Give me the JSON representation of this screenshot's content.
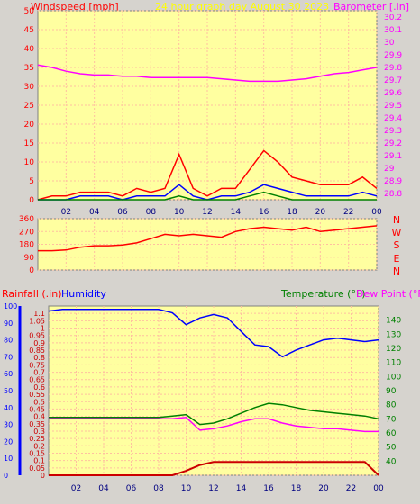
{
  "header": {
    "left": "Windspeed [mph]",
    "center": "24 hour graph day   August 30 2023",
    "right": "Barometer [.in]"
  },
  "colors": {
    "plot_bg": "#ffffa0",
    "grid": "#ffc0a0",
    "wind_gust": "#ff0000",
    "wind_avg": "#0000ff",
    "wind_low": "#008000",
    "barometer": "#ff00ff",
    "direction": "#ff0000",
    "humidity": "#0000ff",
    "temperature": "#008000",
    "dewpoint": "#ff00ff",
    "rainfall": "#cc0000"
  },
  "chart_data": [
    {
      "id": "wind_barometer",
      "type": "line",
      "x_ticks": [
        "02",
        "04",
        "06",
        "08",
        "10",
        "12",
        "14",
        "16",
        "18",
        "20",
        "22",
        "00"
      ],
      "y_left": {
        "label": "Windspeed [mph]",
        "lim": [
          0,
          50
        ],
        "ticks": [
          "0",
          "5",
          "10",
          "15",
          "20",
          "25",
          "30",
          "35",
          "40",
          "45",
          "50"
        ]
      },
      "y_right": {
        "label": "Barometer [.in]",
        "lim": [
          28.75,
          30.25
        ],
        "ticks": [
          "28.8",
          "28.9",
          "29",
          "29.1",
          "29.2",
          "29.3",
          "29.4",
          "29.5",
          "29.6",
          "29.7",
          "29.8",
          "29.9",
          "30",
          "30.1",
          "30.2"
        ]
      },
      "series": [
        {
          "name": "Barometer",
          "axis": "right",
          "x": [
            0,
            1,
            2,
            3,
            4,
            5,
            6,
            7,
            8,
            9,
            10,
            11,
            12,
            13,
            14,
            15,
            16,
            17,
            18,
            19,
            20,
            21,
            22,
            23,
            24
          ],
          "values": [
            29.82,
            29.8,
            29.77,
            29.75,
            29.74,
            29.74,
            29.73,
            29.73,
            29.72,
            29.72,
            29.72,
            29.72,
            29.72,
            29.71,
            29.7,
            29.69,
            29.69,
            29.69,
            29.7,
            29.71,
            29.73,
            29.75,
            29.76,
            29.78,
            29.8
          ]
        },
        {
          "name": "Wind gust",
          "axis": "left",
          "x": [
            0,
            1,
            2,
            3,
            4,
            5,
            6,
            7,
            8,
            9,
            10,
            11,
            12,
            13,
            14,
            15,
            16,
            17,
            18,
            19,
            20,
            21,
            22,
            23,
            24
          ],
          "values": [
            0,
            1,
            1,
            2,
            2,
            2,
            1,
            3,
            2,
            3,
            12,
            3,
            1,
            3,
            3,
            8,
            13,
            10,
            6,
            5,
            4,
            4,
            4,
            6,
            3
          ]
        },
        {
          "name": "Wind average",
          "axis": "left",
          "x": [
            0,
            1,
            2,
            3,
            4,
            5,
            6,
            7,
            8,
            9,
            10,
            11,
            12,
            13,
            14,
            15,
            16,
            17,
            18,
            19,
            20,
            21,
            22,
            23,
            24
          ],
          "values": [
            0,
            0,
            0,
            1,
            1,
            1,
            0,
            1,
            1,
            1,
            4,
            1,
            0,
            1,
            1,
            2,
            4,
            3,
            2,
            1,
            1,
            1,
            1,
            2,
            1
          ]
        },
        {
          "name": "Wind low",
          "axis": "left",
          "x": [
            0,
            1,
            2,
            3,
            4,
            5,
            6,
            7,
            8,
            9,
            10,
            11,
            12,
            13,
            14,
            15,
            16,
            17,
            18,
            19,
            20,
            21,
            22,
            23,
            24
          ],
          "values": [
            0,
            0,
            0,
            0,
            0,
            0,
            0,
            0,
            0,
            0,
            1,
            0,
            0,
            0,
            0,
            1,
            2,
            1,
            0,
            0,
            0,
            0,
            0,
            0,
            0
          ]
        }
      ]
    },
    {
      "id": "wind_direction",
      "type": "line",
      "y_ticks": [
        "0",
        "90",
        "180",
        "270",
        "360"
      ],
      "ylim": [
        0,
        360
      ],
      "compass": [
        "N",
        "W",
        "S",
        "E",
        "N"
      ],
      "series": [
        {
          "name": "Wind direction",
          "x": [
            0,
            1,
            2,
            3,
            4,
            5,
            6,
            7,
            8,
            9,
            10,
            11,
            12,
            13,
            14,
            15,
            16,
            17,
            18,
            19,
            20,
            21,
            22,
            23,
            24
          ],
          "values": [
            135,
            135,
            140,
            160,
            170,
            170,
            175,
            190,
            220,
            250,
            240,
            250,
            240,
            230,
            270,
            290,
            300,
            290,
            280,
            300,
            270,
            280,
            290,
            300,
            310
          ]
        }
      ]
    },
    {
      "id": "temp_humidity_rain",
      "type": "line",
      "x_ticks": [
        "02",
        "04",
        "06",
        "08",
        "10",
        "12",
        "14",
        "16",
        "18",
        "20",
        "22",
        "00"
      ],
      "y_left_humidity": {
        "label": "Humidity",
        "lim": [
          0,
          100
        ],
        "ticks": [
          "0",
          "10",
          "20",
          "30",
          "40",
          "50",
          "60",
          "70",
          "80",
          "90",
          "100"
        ]
      },
      "y_left_rain": {
        "label": "Rainfall (.in)",
        "lim": [
          0,
          1.15
        ],
        "ticks": [
          "0",
          "0.05",
          "0.1",
          "0.15",
          "0.2",
          "0.25",
          "0.3",
          "0.35",
          "0.4",
          "0.45",
          "0.5",
          "0.55",
          "0.6",
          "0.65",
          "0.7",
          "0.75",
          "0.8",
          "0.85",
          "0.9",
          "0.95",
          "1",
          "1.05",
          "1.1"
        ]
      },
      "y_right": {
        "label": "Temperature (°F)",
        "label2": "Dew Point (°F)",
        "lim": [
          30,
          150
        ],
        "ticks": [
          "40",
          "50",
          "60",
          "70",
          "80",
          "90",
          "100",
          "110",
          "120",
          "130",
          "140"
        ]
      },
      "series": [
        {
          "name": "Humidity",
          "axis": "humidity",
          "x": [
            0,
            1,
            2,
            3,
            4,
            5,
            6,
            7,
            8,
            9,
            10,
            11,
            12,
            13,
            14,
            15,
            16,
            17,
            18,
            19,
            20,
            21,
            22,
            23,
            24
          ],
          "values": [
            97,
            98,
            98,
            98,
            98,
            98,
            98,
            98,
            98,
            96,
            89,
            93,
            95,
            93,
            85,
            77,
            76,
            70,
            74,
            77,
            80,
            81,
            80,
            79,
            80
          ]
        },
        {
          "name": "Temperature",
          "axis": "right",
          "x": [
            0,
            1,
            2,
            3,
            4,
            5,
            6,
            7,
            8,
            9,
            10,
            11,
            12,
            13,
            14,
            15,
            16,
            17,
            18,
            19,
            20,
            21,
            22,
            23,
            24
          ],
          "values": [
            71,
            71,
            71,
            71,
            71,
            71,
            71,
            71,
            71,
            72,
            73,
            66,
            67,
            70,
            74,
            78,
            81,
            80,
            78,
            76,
            75,
            74,
            73,
            72,
            70
          ]
        },
        {
          "name": "Dew Point",
          "axis": "right",
          "x": [
            0,
            1,
            2,
            3,
            4,
            5,
            6,
            7,
            8,
            9,
            10,
            11,
            12,
            13,
            14,
            15,
            16,
            17,
            18,
            19,
            20,
            21,
            22,
            23,
            24
          ],
          "values": [
            70,
            70,
            70,
            70,
            70,
            70,
            70,
            70,
            70,
            70,
            71,
            62,
            63,
            65,
            68,
            70,
            70,
            67,
            65,
            64,
            63,
            63,
            62,
            61,
            61
          ]
        },
        {
          "name": "Rainfall",
          "axis": "rain",
          "x": [
            0,
            1,
            2,
            3,
            4,
            5,
            6,
            7,
            8,
            9,
            10,
            11,
            12,
            13,
            14,
            15,
            16,
            17,
            18,
            19,
            20,
            21,
            22,
            23,
            24
          ],
          "values": [
            0,
            0,
            0,
            0,
            0,
            0,
            0,
            0,
            0,
            0,
            0.03,
            0.07,
            0.09,
            0.09,
            0.09,
            0.09,
            0.09,
            0.09,
            0.09,
            0.09,
            0.09,
            0.09,
            0.09,
            0.09,
            0.0
          ]
        }
      ]
    }
  ]
}
